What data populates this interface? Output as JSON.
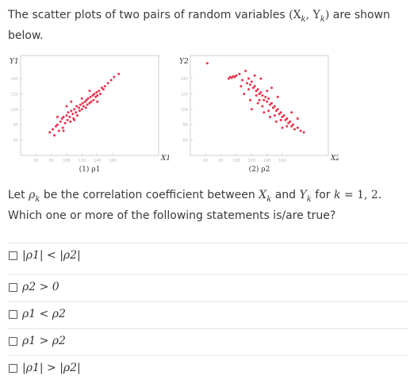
{
  "question": {
    "intro_pre": "The scatter plots of two pairs of random variables ",
    "intro_math": "(X",
    "intro_k1": "k",
    "intro_mid": ", Y",
    "intro_k2": "k",
    "intro_close": ")",
    "intro_post": " are shown",
    "intro_line2": "below.",
    "stem_a": "Let ",
    "stem_rho": "ρ",
    "stem_rho_sub": "k",
    "stem_b": " be the correlation coefficient between ",
    "stem_x": "X",
    "stem_x_sub": "k",
    "stem_c": " and ",
    "stem_y": "Y",
    "stem_y_sub": "k",
    "stem_d": " for ",
    "stem_k": "k",
    "stem_e": " = 1, 2.",
    "stem_line2": "Which one or more of the following statements is/are true?"
  },
  "chart_data": [
    {
      "type": "scatter",
      "caption": "(1) ρ1",
      "xlabel": "X1",
      "ylabel": "Y1",
      "xlim": [
        40,
        220
      ],
      "ylim": [
        40,
        170
      ],
      "x_ticks": [
        "60",
        "80",
        "100",
        "120",
        "140",
        "160"
      ],
      "y_ticks": [
        "140",
        "120",
        "100",
        "80",
        "60"
      ],
      "point_color": "#e8334d",
      "points": [
        [
          78,
          70
        ],
        [
          82,
          74
        ],
        [
          84,
          66
        ],
        [
          86,
          78
        ],
        [
          88,
          80
        ],
        [
          90,
          72
        ],
        [
          92,
          84
        ],
        [
          94,
          88
        ],
        [
          95,
          76
        ],
        [
          96,
          90
        ],
        [
          98,
          82
        ],
        [
          100,
          92
        ],
        [
          101,
          86
        ],
        [
          102,
          96
        ],
        [
          104,
          90
        ],
        [
          105,
          84
        ],
        [
          106,
          98
        ],
        [
          108,
          94
        ],
        [
          109,
          88
        ],
        [
          110,
          100
        ],
        [
          112,
          96
        ],
        [
          113,
          104
        ],
        [
          114,
          92
        ],
        [
          116,
          102
        ],
        [
          117,
          98
        ],
        [
          118,
          106
        ],
        [
          120,
          100
        ],
        [
          121,
          108
        ],
        [
          122,
          104
        ],
        [
          124,
          110
        ],
        [
          125,
          102
        ],
        [
          126,
          112
        ],
        [
          127,
          106
        ],
        [
          128,
          114
        ],
        [
          130,
          108
        ],
        [
          131,
          116
        ],
        [
          132,
          110
        ],
        [
          134,
          118
        ],
        [
          135,
          112
        ],
        [
          136,
          120
        ],
        [
          138,
          116
        ],
        [
          139,
          122
        ],
        [
          140,
          118
        ],
        [
          142,
          124
        ],
        [
          144,
          120
        ],
        [
          146,
          128
        ],
        [
          148,
          126
        ],
        [
          150,
          130
        ],
        [
          154,
          134
        ],
        [
          158,
          138
        ],
        [
          162,
          142
        ],
        [
          168,
          146
        ],
        [
          88,
          90
        ],
        [
          100,
          104
        ],
        [
          110,
          86
        ],
        [
          120,
          114
        ],
        [
          130,
          124
        ],
        [
          140,
          110
        ],
        [
          96,
          72
        ],
        [
          106,
          110
        ]
      ]
    },
    {
      "type": "scatter",
      "caption": "(2) ρ2",
      "xlabel": "X2",
      "ylabel": "Y2",
      "xlim": [
        40,
        220
      ],
      "ylim": [
        40,
        170
      ],
      "x_ticks": [
        "60",
        "80",
        "100",
        "120",
        "140",
        "160"
      ],
      "y_ticks": [
        "140",
        "120",
        "100",
        "80",
        "60"
      ],
      "point_color": "#e8334d",
      "points": [
        [
          62,
          160
        ],
        [
          90,
          140
        ],
        [
          92,
          142
        ],
        [
          94,
          141
        ],
        [
          96,
          143
        ],
        [
          98,
          142
        ],
        [
          100,
          144
        ],
        [
          104,
          146
        ],
        [
          108,
          138
        ],
        [
          112,
          150
        ],
        [
          114,
          134
        ],
        [
          116,
          140
        ],
        [
          118,
          132
        ],
        [
          120,
          136
        ],
        [
          122,
          128
        ],
        [
          124,
          130
        ],
        [
          126,
          124
        ],
        [
          128,
          126
        ],
        [
          130,
          120
        ],
        [
          132,
          122
        ],
        [
          134,
          118
        ],
        [
          136,
          112
        ],
        [
          138,
          116
        ],
        [
          140,
          110
        ],
        [
          142,
          114
        ],
        [
          144,
          106
        ],
        [
          146,
          108
        ],
        [
          148,
          102
        ],
        [
          150,
          104
        ],
        [
          152,
          98
        ],
        [
          154,
          100
        ],
        [
          156,
          94
        ],
        [
          158,
          96
        ],
        [
          160,
          90
        ],
        [
          162,
          92
        ],
        [
          164,
          86
        ],
        [
          166,
          88
        ],
        [
          168,
          82
        ],
        [
          170,
          84
        ],
        [
          172,
          78
        ],
        [
          174,
          80
        ],
        [
          176,
          74
        ],
        [
          180,
          76
        ],
        [
          184,
          72
        ],
        [
          188,
          70
        ],
        [
          110,
          120
        ],
        [
          118,
          112
        ],
        [
          126,
          118
        ],
        [
          134,
          104
        ],
        [
          142,
          98
        ],
        [
          150,
          92
        ],
        [
          158,
          86
        ],
        [
          166,
          78
        ],
        [
          132,
          140
        ],
        [
          124,
          144
        ],
        [
          146,
          128
        ],
        [
          154,
          116
        ],
        [
          172,
          96
        ],
        [
          180,
          88
        ],
        [
          128,
          108
        ],
        [
          120,
          100
        ],
        [
          136,
          96
        ],
        [
          144,
          90
        ],
        [
          152,
          84
        ],
        [
          160,
          76
        ],
        [
          140,
          124
        ],
        [
          130,
          112
        ],
        [
          116,
          126
        ],
        [
          106,
          130
        ]
      ]
    }
  ],
  "options": [
    {
      "label": "|ρ1| < |ρ2|"
    },
    {
      "label": "ρ2 > 0"
    },
    {
      "label": "ρ1 < ρ2"
    },
    {
      "label": "ρ1 > ρ2"
    },
    {
      "label": "|ρ1| > |ρ2|"
    }
  ]
}
